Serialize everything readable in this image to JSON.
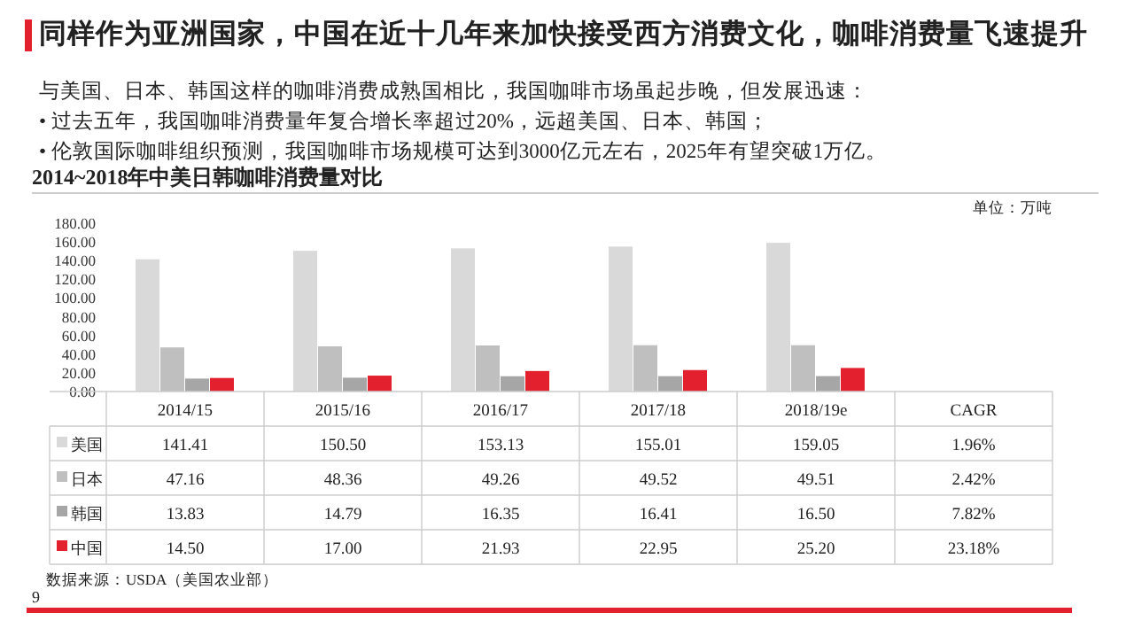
{
  "chart_data": {
    "type": "bar",
    "title": "2014~2018年中美日韩咖啡消费量对比",
    "annotations": [
      "同样作为亚洲国家，中国在近十几年来加快接受西方消费文化，咖啡消费量飞速提升",
      "与美国、日本、韩国这样的咖啡消费成熟国相比，我国咖啡市场虽起步晚，但发展迅速：",
      "•  过去五年，我国咖啡消费量年复合增长率超过20%，远超美国、日本、韩国；",
      "•  伦敦国际咖啡组织预测，我国咖啡市场规模可达到3000亿元左右，2025年有望突破1万亿。",
      "单位：万吨",
      "数据来源：USDA（美国农业部）",
      "9"
    ],
    "categories": [
      "2014/15",
      "2015/16",
      "2016/17",
      "2017/18",
      "2018/19e",
      "CAGR"
    ],
    "series": [
      {
        "name": "美国",
        "color": "#d9d9d9",
        "values": [
          141.41,
          150.5,
          153.13,
          155.01,
          159.05,
          null
        ],
        "value_labels": [
          "141.41",
          "150.50",
          "153.13",
          "155.01",
          "159.05",
          "1.96%"
        ]
      },
      {
        "name": "日本",
        "color": "#bfbfbf",
        "values": [
          47.16,
          48.36,
          49.26,
          49.52,
          49.51,
          null
        ],
        "value_labels": [
          "47.16",
          "48.36",
          "49.26",
          "49.52",
          "49.51",
          "2.42%"
        ]
      },
      {
        "name": "韩国",
        "color": "#a6a6a6",
        "values": [
          13.83,
          14.79,
          16.35,
          16.41,
          16.5,
          null
        ],
        "value_labels": [
          "13.83",
          "14.79",
          "16.35",
          "16.41",
          "16.50",
          "7.82%"
        ]
      },
      {
        "name": "中国",
        "color": "#e3202e",
        "values": [
          14.5,
          17.0,
          21.93,
          22.95,
          25.2,
          null
        ],
        "value_labels": [
          "14.50",
          "17.00",
          "21.93",
          "22.95",
          "25.20",
          "23.18%"
        ]
      }
    ],
    "ylim": [
      0,
      180
    ],
    "yticks": [
      {
        "value": 0,
        "label": "0.00"
      },
      {
        "value": 20,
        "label": "20.00"
      },
      {
        "value": 40,
        "label": "40.00"
      },
      {
        "value": 60,
        "label": "60.00"
      },
      {
        "value": 80,
        "label": "80.00"
      },
      {
        "value": 100,
        "label": "100.00"
      },
      {
        "value": 120,
        "label": "120.00"
      },
      {
        "value": 140,
        "label": "140.00"
      },
      {
        "value": 160,
        "label": "160.00"
      },
      {
        "value": 180,
        "label": "180.00"
      }
    ],
    "legend": "bottom"
  }
}
